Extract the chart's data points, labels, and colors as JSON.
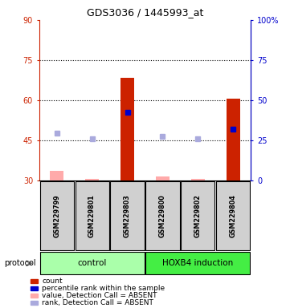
{
  "title": "GDS3036 / 1445993_at",
  "samples": [
    "GSM229799",
    "GSM229801",
    "GSM229803",
    "GSM229800",
    "GSM229802",
    "GSM229804"
  ],
  "red_bars": [
    null,
    null,
    68.5,
    null,
    null,
    60.5
  ],
  "red_bars_absent": [
    33.5,
    30.5,
    null,
    31.5,
    30.5,
    null
  ],
  "blue_dots": [
    null,
    null,
    55.5,
    null,
    null,
    49.0
  ],
  "blue_dots_absent": [
    47.5,
    45.5,
    null,
    46.5,
    45.5,
    null
  ],
  "ylim_left": [
    30,
    90
  ],
  "ylim_right": [
    0,
    100
  ],
  "yticks_left": [
    30,
    45,
    60,
    75,
    90
  ],
  "yticks_right": [
    0,
    25,
    50,
    75,
    100
  ],
  "ytick_labels_left": [
    "30",
    "45",
    "60",
    "75",
    "90"
  ],
  "ytick_labels_right": [
    "0",
    "25",
    "50",
    "75",
    "100%"
  ],
  "hlines": [
    45,
    60,
    75
  ],
  "left_axis_color": "#cc2200",
  "right_axis_color": "#0000cc",
  "bar_width": 0.4,
  "legend_items": [
    {
      "label": "count",
      "color": "#cc2200"
    },
    {
      "label": "percentile rank within the sample",
      "color": "#0000cc"
    },
    {
      "label": "value, Detection Call = ABSENT",
      "color": "#ffaaaa"
    },
    {
      "label": "rank, Detection Call = ABSENT",
      "color": "#aaaadd"
    }
  ],
  "control_color": "#aaffaa",
  "hoxb4_color": "#44ee44",
  "sample_box_color": "#d0d0d0"
}
